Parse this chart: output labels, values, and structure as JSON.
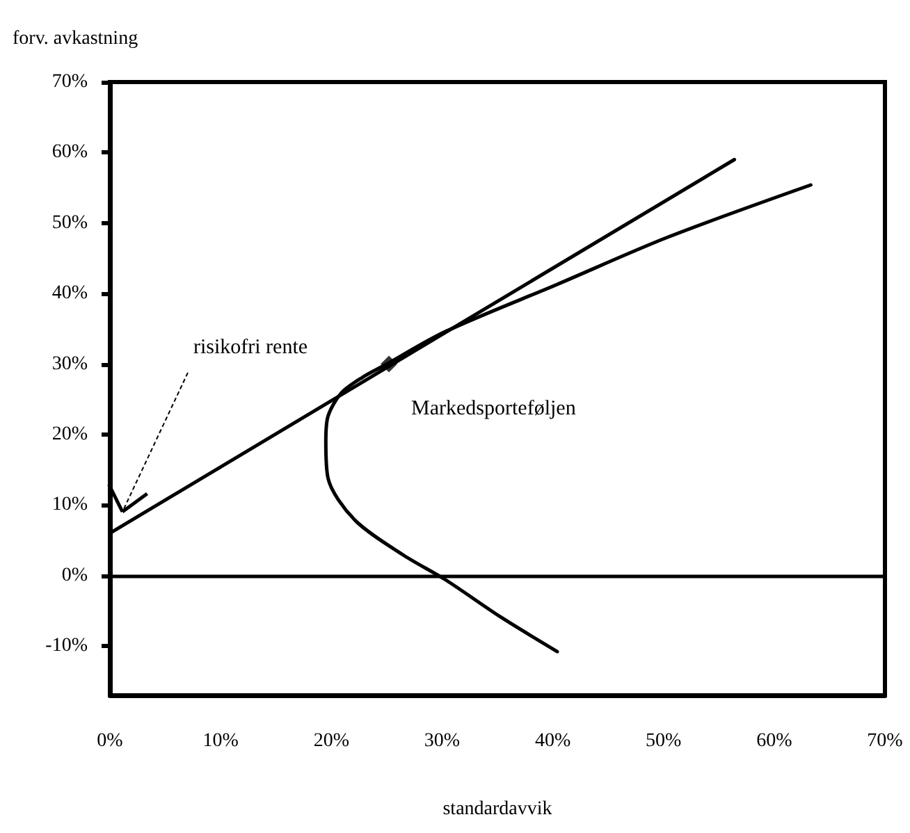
{
  "chart_data": {
    "type": "line",
    "xlabel": "standardavvik",
    "ylabel": "forv. avkastning",
    "xlim": [
      0,
      70
    ],
    "ylim": [
      -17,
      70
    ],
    "xticks": [
      {
        "value": 0,
        "label": "0%"
      },
      {
        "value": 10,
        "label": "10%"
      },
      {
        "value": 20,
        "label": "20%"
      },
      {
        "value": 30,
        "label": "30%"
      },
      {
        "value": 40,
        "label": "40%"
      },
      {
        "value": 50,
        "label": "50%"
      },
      {
        "value": 60,
        "label": "60%"
      },
      {
        "value": 70,
        "label": "70%"
      }
    ],
    "yticks": [
      {
        "value": -10,
        "label": "-10%"
      },
      {
        "value": 0,
        "label": "0%"
      },
      {
        "value": 10,
        "label": "10%"
      },
      {
        "value": 20,
        "label": "20%"
      },
      {
        "value": 30,
        "label": "30%"
      },
      {
        "value": 40,
        "label": "40%"
      },
      {
        "value": 50,
        "label": "50%"
      },
      {
        "value": 60,
        "label": "60%"
      },
      {
        "value": 70,
        "label": "70%"
      }
    ],
    "series": [
      {
        "color": "#000000",
        "x": [
          0,
          56.4
        ],
        "values": [
          6,
          59
        ]
      },
      {
        "color": "#000000",
        "x": [
          40.4,
          35.3,
          30.3,
          26.5,
          22.1,
          19.7,
          19.5,
          19.7,
          20.9,
          22.8,
          24.9,
          30.3,
          40.4,
          50.4,
          63.3
        ],
        "values": [
          -10.8,
          -5.9,
          -0.6,
          2.9,
          7.9,
          13.8,
          19,
          22.6,
          25.9,
          28.1,
          29.9,
          34.6,
          41.3,
          48,
          55.4
        ]
      },
      {
        "type": "scatter",
        "marker": "diamond",
        "color": "#000000",
        "x": [
          25.2
        ],
        "values": [
          30
        ]
      }
    ],
    "marker": "none",
    "line_style": "solid",
    "ref_lines": [
      {
        "axis": "y",
        "value": 0
      }
    ],
    "annotations": [
      "risikofri rente",
      {
        "text": "Markedsporteføljen",
        "x": 25.2,
        "y": 30
      }
    ]
  }
}
